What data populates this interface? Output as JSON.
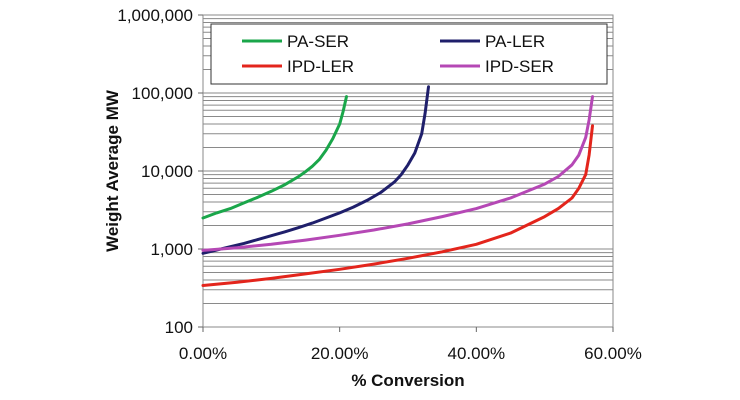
{
  "chart_data": {
    "type": "line",
    "title": "",
    "xlabel": "% Conversion",
    "ylabel": "Weight Average MW",
    "xlim": [
      0,
      0.6
    ],
    "ylim": [
      100,
      1000000
    ],
    "y_scale": "log",
    "grid": true,
    "legend_position": "top",
    "x_ticks": [
      {
        "value": 0,
        "label": "0.00%"
      },
      {
        "value": 0.2,
        "label": "20.00%"
      },
      {
        "value": 0.4,
        "label": "40.00%"
      },
      {
        "value": 0.6,
        "label": "60.00%"
      }
    ],
    "y_ticks": [
      {
        "value": 100,
        "label": "100"
      },
      {
        "value": 1000,
        "label": "1,000"
      },
      {
        "value": 10000,
        "label": "10,000"
      },
      {
        "value": 100000,
        "label": "100,000"
      },
      {
        "value": 1000000,
        "label": "1,000,000"
      }
    ],
    "series": [
      {
        "name": "PA-SER",
        "color": "#1aa64a",
        "x": [
          0,
          0.02,
          0.04,
          0.06,
          0.08,
          0.1,
          0.12,
          0.14,
          0.15,
          0.16,
          0.17,
          0.18,
          0.19,
          0.2,
          0.205,
          0.21
        ],
        "y": [
          2500,
          2900,
          3300,
          3900,
          4600,
          5500,
          6700,
          8500,
          9800,
          11500,
          14000,
          18500,
          26000,
          40000,
          58000,
          90000
        ]
      },
      {
        "name": "PA-LER",
        "color": "#1f1f6b",
        "x": [
          0,
          0.02,
          0.04,
          0.06,
          0.08,
          0.1,
          0.12,
          0.14,
          0.16,
          0.18,
          0.2,
          0.22,
          0.24,
          0.26,
          0.28,
          0.29,
          0.3,
          0.31,
          0.32,
          0.325,
          0.33
        ],
        "y": [
          880,
          970,
          1070,
          1180,
          1320,
          1480,
          1660,
          1880,
          2150,
          2500,
          2900,
          3450,
          4200,
          5300,
          7200,
          9000,
          12000,
          17000,
          30000,
          55000,
          120000
        ]
      },
      {
        "name": "IPD-LER",
        "color": "#e3251c",
        "x": [
          0,
          0.05,
          0.1,
          0.15,
          0.2,
          0.25,
          0.3,
          0.35,
          0.4,
          0.45,
          0.5,
          0.52,
          0.54,
          0.55,
          0.56,
          0.565,
          0.57
        ],
        "y": [
          340,
          375,
          420,
          480,
          550,
          640,
          760,
          920,
          1150,
          1600,
          2600,
          3300,
          4500,
          6000,
          9000,
          16000,
          38000
        ]
      },
      {
        "name": "IPD-SER",
        "color": "#b548b5",
        "x": [
          0,
          0.05,
          0.1,
          0.15,
          0.2,
          0.25,
          0.3,
          0.35,
          0.4,
          0.45,
          0.5,
          0.52,
          0.54,
          0.55,
          0.56,
          0.565,
          0.57
        ],
        "y": [
          960,
          1040,
          1150,
          1300,
          1500,
          1750,
          2100,
          2600,
          3300,
          4500,
          6800,
          8500,
          12000,
          16000,
          27000,
          45000,
          90000
        ]
      }
    ]
  }
}
